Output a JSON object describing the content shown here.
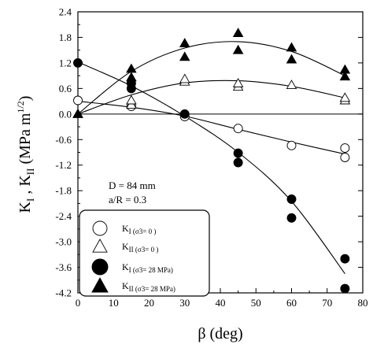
{
  "chart_data": {
    "type": "scatter",
    "xlabel": "β (deg)",
    "ylabel": "K_I , K_II (MPa m^1/2)",
    "xlim": [
      0,
      80
    ],
    "ylim": [
      -4.2,
      2.4
    ],
    "x_ticks": [
      0,
      10,
      20,
      30,
      40,
      50,
      60,
      70,
      80
    ],
    "y_ticks": [
      2.4,
      1.8,
      1.2,
      0.6,
      0.0,
      -0.6,
      -1.2,
      -1.8,
      -2.4,
      -3.0,
      -3.6,
      -4.2
    ],
    "x_tick_labels": [
      "0",
      "10",
      "20",
      "30",
      "40",
      "50",
      "60",
      "70",
      "80"
    ],
    "y_tick_labels": [
      "2.4",
      "1.8",
      "1.2",
      "0.6",
      "0.0",
      "-0.6",
      "-1.2",
      "-1.8",
      "-2.4",
      "-3.0",
      "-3.6",
      "-4.2"
    ],
    "grid": false,
    "zero_line": true,
    "annotations": [
      "D = 84 mm",
      "a/R = 0.3"
    ],
    "legend_position": "bottom-left",
    "series": [
      {
        "name": "K_I (σ3= 0 )",
        "marker": "circle-open",
        "points": [
          [
            0,
            0.32
          ],
          [
            15,
            0.18
          ],
          [
            30,
            -0.06
          ],
          [
            45,
            -0.34
          ],
          [
            60,
            -0.74
          ],
          [
            75,
            -0.8
          ],
          [
            75,
            -1.02
          ]
        ],
        "fit": [
          [
            0,
            0.3
          ],
          [
            15,
            0.16
          ],
          [
            30,
            -0.05
          ],
          [
            45,
            -0.36
          ],
          [
            60,
            -0.66
          ],
          [
            75,
            -0.94
          ]
        ]
      },
      {
        "name": "K_II (σ3= 0 )",
        "marker": "triangle-open",
        "points": [
          [
            0,
            0.0
          ],
          [
            15,
            0.22
          ],
          [
            15,
            0.32
          ],
          [
            30,
            0.76
          ],
          [
            30,
            0.82
          ],
          [
            45,
            0.64
          ],
          [
            45,
            0.72
          ],
          [
            60,
            0.68
          ],
          [
            75,
            0.32
          ],
          [
            75,
            0.38
          ]
        ],
        "fit": [
          [
            0,
            0.0
          ],
          [
            15,
            0.45
          ],
          [
            30,
            0.73
          ],
          [
            45,
            0.78
          ],
          [
            60,
            0.65
          ],
          [
            75,
            0.38
          ]
        ]
      },
      {
        "name": "K_I (σ3= 28 MPa)",
        "marker": "circle-filled",
        "points": [
          [
            0,
            1.2
          ],
          [
            15,
            0.6
          ],
          [
            15,
            0.72
          ],
          [
            30,
            0.0
          ],
          [
            45,
            -0.92
          ],
          [
            45,
            -1.14
          ],
          [
            60,
            -2.0
          ],
          [
            60,
            -2.44
          ],
          [
            75,
            -3.4
          ],
          [
            75,
            -4.1
          ]
        ],
        "fit": [
          [
            0,
            1.22
          ],
          [
            15,
            0.66
          ],
          [
            30,
            -0.05
          ],
          [
            45,
            -0.9
          ],
          [
            60,
            -2.05
          ],
          [
            75,
            -3.75
          ]
        ]
      },
      {
        "name": "K_II (σ3= 28 MPa)",
        "marker": "triangle-filled",
        "points": [
          [
            0,
            0.0
          ],
          [
            15,
            0.86
          ],
          [
            15,
            1.06
          ],
          [
            30,
            1.34
          ],
          [
            30,
            1.66
          ],
          [
            45,
            1.5
          ],
          [
            45,
            1.9
          ],
          [
            60,
            1.28
          ],
          [
            60,
            1.56
          ],
          [
            75,
            0.88
          ],
          [
            75,
            1.04
          ]
        ],
        "fit": [
          [
            0,
            0.0
          ],
          [
            15,
            1.0
          ],
          [
            30,
            1.55
          ],
          [
            45,
            1.7
          ],
          [
            60,
            1.47
          ],
          [
            75,
            0.9
          ]
        ]
      }
    ]
  }
}
